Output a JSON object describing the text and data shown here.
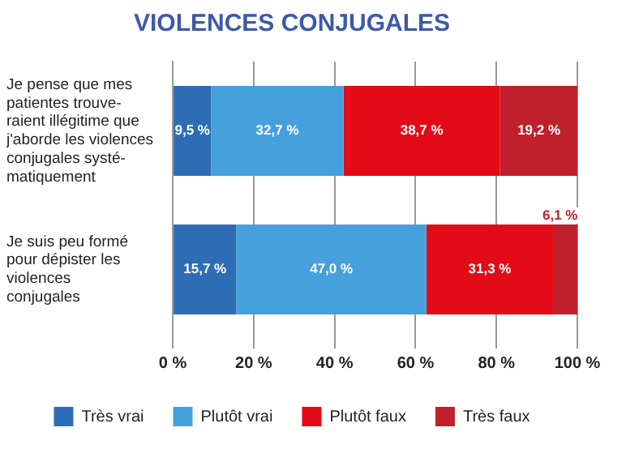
{
  "chart_data": {
    "type": "bar",
    "orientation": "horizontal",
    "stacked": true,
    "title": "VIOLENCES CONJUGALES",
    "categories": [
      "Je pense que mes\npatientes trouve-\nraient illégitime que\nj'aborde les violences\nconjugales systé-\nmatiquement",
      "Je suis peu formé\npour dépister les\nviolences\nconjugales"
    ],
    "series": [
      {
        "name": "Très vrai",
        "color": "#2d6db5",
        "values": [
          9.5,
          15.7
        ],
        "value_labels": [
          "9,5 %",
          "15,7 %"
        ]
      },
      {
        "name": "Plutôt vrai",
        "color": "#46a0dc",
        "values": [
          32.7,
          47.0
        ],
        "value_labels": [
          "32,7 %",
          "47,0 %"
        ]
      },
      {
        "name": "Plutôt faux",
        "color": "#e30b17",
        "values": [
          38.7,
          31.3
        ],
        "value_labels": [
          "38,7 %",
          "31,3 %"
        ]
      },
      {
        "name": "Très faux",
        "color": "#c01f2c",
        "values": [
          19.2,
          6.1
        ],
        "value_labels": [
          "19,2 %",
          "6,1 %"
        ]
      }
    ],
    "xlim": [
      0,
      100
    ],
    "xticks": [
      {
        "value": 0,
        "label": "0 %"
      },
      {
        "value": 20,
        "label": "20 %"
      },
      {
        "value": 40,
        "label": "40 %"
      },
      {
        "value": 60,
        "label": "60 %"
      },
      {
        "value": 80,
        "label": "80 %"
      },
      {
        "value": 100,
        "label": "100 %"
      }
    ],
    "grid": "x",
    "legend": "bottom"
  }
}
